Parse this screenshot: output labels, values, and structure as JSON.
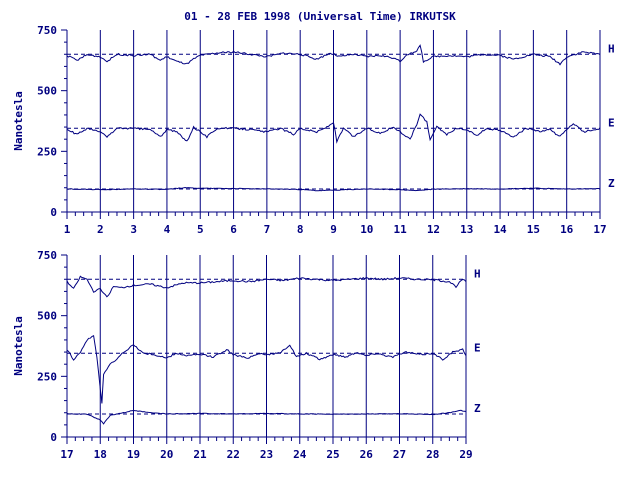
{
  "title": "01 - 28 FEB 1998 (Universal Time) IRKUTSK",
  "colors": {
    "ink": "#000080",
    "background": "#ffffff"
  },
  "chart_data": [
    {
      "type": "line",
      "ylabel": "Nanotesla",
      "xlim": [
        1,
        17
      ],
      "ylim": [
        0,
        750
      ],
      "yticks": [
        0,
        250,
        500,
        750
      ],
      "xticks": [
        "1",
        "2",
        "3",
        "4",
        "5",
        "6",
        "7",
        "8",
        "9",
        "10",
        "11",
        "12",
        "13",
        "14",
        "15",
        "16",
        "17"
      ],
      "grid": "vertical day lines",
      "series": [
        {
          "name": "H",
          "baseline": 650,
          "points": [
            [
              1,
              645
            ],
            [
              1.3,
              625
            ],
            [
              1.6,
              648
            ],
            [
              2,
              640
            ],
            [
              2.2,
              620
            ],
            [
              2.5,
              650
            ],
            [
              3,
              645
            ],
            [
              3.5,
              650
            ],
            [
              3.8,
              625
            ],
            [
              4,
              640
            ],
            [
              4.3,
              620
            ],
            [
              4.6,
              610
            ],
            [
              4.8,
              630
            ],
            [
              5,
              645
            ],
            [
              5.5,
              655
            ],
            [
              6,
              660
            ],
            [
              6.5,
              650
            ],
            [
              7,
              640
            ],
            [
              7.5,
              655
            ],
            [
              8,
              650
            ],
            [
              8.5,
              630
            ],
            [
              8.9,
              655
            ],
            [
              9.2,
              640
            ],
            [
              9.6,
              650
            ],
            [
              10,
              640
            ],
            [
              10.4,
              645
            ],
            [
              10.8,
              635
            ],
            [
              11,
              620
            ],
            [
              11.2,
              650
            ],
            [
              11.5,
              660
            ],
            [
              11.6,
              690
            ],
            [
              11.7,
              620
            ],
            [
              12,
              640
            ],
            [
              12.5,
              645
            ],
            [
              13,
              640
            ],
            [
              13.5,
              650
            ],
            [
              14,
              645
            ],
            [
              14.4,
              630
            ],
            [
              15,
              650
            ],
            [
              15.5,
              640
            ],
            [
              15.8,
              610
            ],
            [
              16,
              640
            ],
            [
              16.5,
              660
            ],
            [
              17,
              650
            ]
          ]
        },
        {
          "name": "E",
          "baseline": 345,
          "points": [
            [
              1,
              340
            ],
            [
              1.3,
              320
            ],
            [
              1.6,
              345
            ],
            [
              2,
              330
            ],
            [
              2.2,
              310
            ],
            [
              2.5,
              345
            ],
            [
              3,
              345
            ],
            [
              3.5,
              340
            ],
            [
              3.8,
              310
            ],
            [
              4,
              340
            ],
            [
              4.3,
              330
            ],
            [
              4.6,
              290
            ],
            [
              4.8,
              350
            ],
            [
              5,
              330
            ],
            [
              5.2,
              310
            ],
            [
              5.5,
              345
            ],
            [
              6,
              345
            ],
            [
              6.5,
              340
            ],
            [
              7,
              330
            ],
            [
              7.4,
              345
            ],
            [
              7.8,
              320
            ],
            [
              8,
              345
            ],
            [
              8.5,
              330
            ],
            [
              8.8,
              350
            ],
            [
              9,
              370
            ],
            [
              9.1,
              290
            ],
            [
              9.3,
              345
            ],
            [
              9.6,
              310
            ],
            [
              10,
              345
            ],
            [
              10.4,
              325
            ],
            [
              10.8,
              350
            ],
            [
              11,
              330
            ],
            [
              11.3,
              300
            ],
            [
              11.5,
              360
            ],
            [
              11.6,
              405
            ],
            [
              11.8,
              370
            ],
            [
              11.9,
              300
            ],
            [
              12.1,
              350
            ],
            [
              12.4,
              320
            ],
            [
              12.7,
              345
            ],
            [
              13,
              340
            ],
            [
              13.3,
              315
            ],
            [
              13.6,
              345
            ],
            [
              14,
              335
            ],
            [
              14.4,
              310
            ],
            [
              14.8,
              345
            ],
            [
              15.2,
              330
            ],
            [
              15.5,
              340
            ],
            [
              15.8,
              310
            ],
            [
              16,
              340
            ],
            [
              16.2,
              365
            ],
            [
              16.5,
              330
            ],
            [
              17,
              345
            ]
          ]
        },
        {
          "name": "Z",
          "baseline": 95,
          "points": [
            [
              1,
              95
            ],
            [
              2,
              92
            ],
            [
              3,
              95
            ],
            [
              4,
              93
            ],
            [
              4.5,
              100
            ],
            [
              5,
              98
            ],
            [
              6,
              97
            ],
            [
              7,
              95
            ],
            [
              8,
              93
            ],
            [
              8.5,
              88
            ],
            [
              9,
              90
            ],
            [
              10,
              95
            ],
            [
              11,
              92
            ],
            [
              11.5,
              88
            ],
            [
              12,
              94
            ],
            [
              13,
              96
            ],
            [
              14,
              95
            ],
            [
              15,
              98
            ],
            [
              16,
              95
            ],
            [
              17,
              96
            ]
          ]
        }
      ]
    },
    {
      "type": "line",
      "ylabel": "Nanotesla",
      "xlim": [
        17,
        29
      ],
      "ylim": [
        0,
        750
      ],
      "yticks": [
        0,
        250,
        500,
        750
      ],
      "xticks": [
        "17",
        "18",
        "19",
        "20",
        "21",
        "22",
        "23",
        "24",
        "25",
        "26",
        "27",
        "28",
        "29"
      ],
      "grid": "vertical day lines",
      "series": [
        {
          "name": "H",
          "baseline": 650,
          "points": [
            [
              17,
              640
            ],
            [
              17.2,
              610
            ],
            [
              17.4,
              660
            ],
            [
              17.6,
              650
            ],
            [
              17.8,
              600
            ],
            [
              18,
              610
            ],
            [
              18.2,
              575
            ],
            [
              18.4,
              620
            ],
            [
              18.6,
              615
            ],
            [
              19,
              625
            ],
            [
              19.5,
              630
            ],
            [
              20,
              615
            ],
            [
              20.5,
              635
            ],
            [
              21,
              635
            ],
            [
              21.5,
              640
            ],
            [
              22,
              645
            ],
            [
              22.5,
              640
            ],
            [
              23,
              650
            ],
            [
              23.5,
              645
            ],
            [
              24,
              655
            ],
            [
              24.5,
              650
            ],
            [
              25,
              645
            ],
            [
              25.5,
              650
            ],
            [
              26,
              655
            ],
            [
              26.5,
              650
            ],
            [
              27,
              655
            ],
            [
              27.5,
              650
            ],
            [
              28,
              648
            ],
            [
              28.5,
              640
            ],
            [
              28.7,
              620
            ],
            [
              28.9,
              650
            ],
            [
              29,
              640
            ]
          ]
        },
        {
          "name": "E",
          "baseline": 345,
          "points": [
            [
              17,
              360
            ],
            [
              17.2,
              320
            ],
            [
              17.4,
              350
            ],
            [
              17.6,
              400
            ],
            [
              17.8,
              415
            ],
            [
              17.9,
              330
            ],
            [
              18,
              200
            ],
            [
              18.05,
              140
            ],
            [
              18.1,
              260
            ],
            [
              18.3,
              300
            ],
            [
              18.5,
              320
            ],
            [
              18.7,
              350
            ],
            [
              19,
              380
            ],
            [
              19.3,
              345
            ],
            [
              19.6,
              340
            ],
            [
              20,
              325
            ],
            [
              20.3,
              345
            ],
            [
              20.6,
              335
            ],
            [
              21,
              340
            ],
            [
              21.4,
              330
            ],
            [
              21.8,
              360
            ],
            [
              22,
              340
            ],
            [
              22.4,
              325
            ],
            [
              22.8,
              345
            ],
            [
              23,
              340
            ],
            [
              23.4,
              345
            ],
            [
              23.7,
              380
            ],
            [
              23.9,
              330
            ],
            [
              24.2,
              345
            ],
            [
              24.6,
              320
            ],
            [
              25,
              340
            ],
            [
              25.4,
              330
            ],
            [
              25.7,
              350
            ],
            [
              26,
              335
            ],
            [
              26.3,
              345
            ],
            [
              26.8,
              330
            ],
            [
              27.2,
              350
            ],
            [
              27.6,
              340
            ],
            [
              28,
              345
            ],
            [
              28.3,
              320
            ],
            [
              28.6,
              350
            ],
            [
              28.9,
              360
            ],
            [
              29,
              335
            ]
          ]
        },
        {
          "name": "Z",
          "baseline": 95,
          "points": [
            [
              17,
              96
            ],
            [
              17.6,
              94
            ],
            [
              18,
              70
            ],
            [
              18.1,
              55
            ],
            [
              18.3,
              90
            ],
            [
              18.7,
              100
            ],
            [
              19,
              110
            ],
            [
              19.5,
              100
            ],
            [
              20,
              95
            ],
            [
              21,
              97
            ],
            [
              22,
              95
            ],
            [
              23,
              97
            ],
            [
              24,
              95
            ],
            [
              25,
              94
            ],
            [
              26,
              95
            ],
            [
              27,
              96
            ],
            [
              28,
              93
            ],
            [
              28.5,
              100
            ],
            [
              28.8,
              110
            ],
            [
              29,
              105
            ]
          ]
        }
      ]
    }
  ]
}
